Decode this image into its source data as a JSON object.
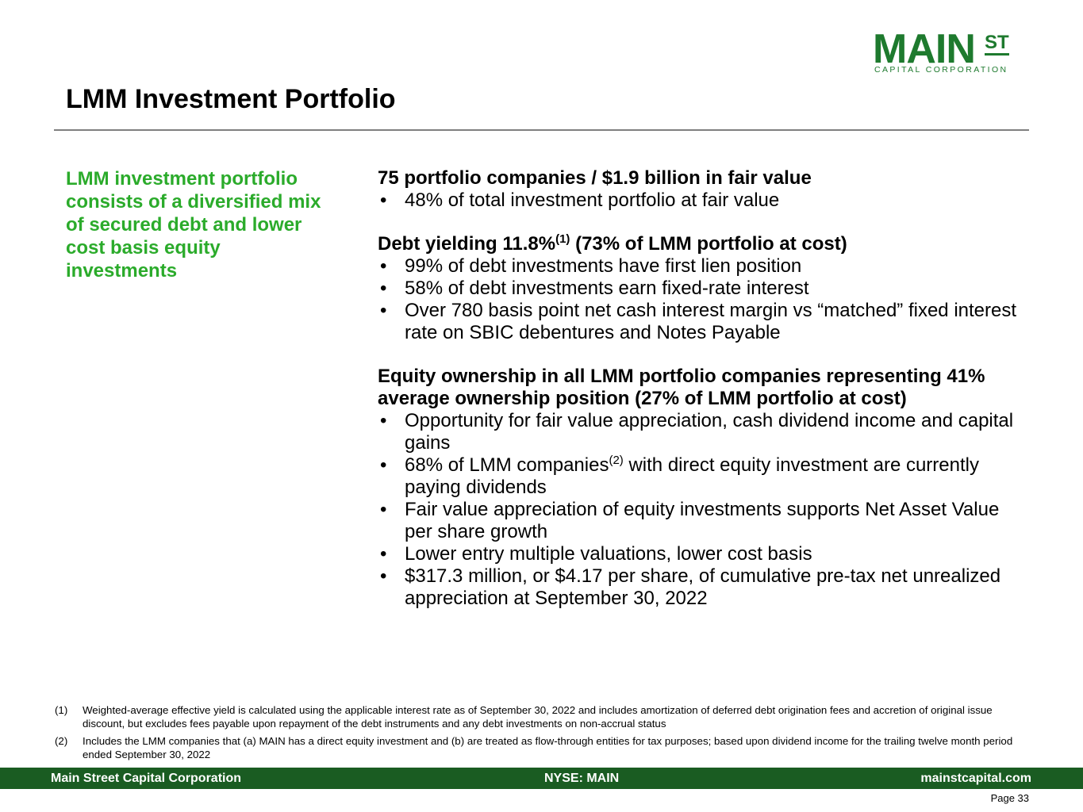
{
  "logo": {
    "main": "MAIN",
    "st": "ST",
    "sub": "CAPITAL CORPORATION"
  },
  "title": "LMM Investment Portfolio",
  "callout": "LMM investment portfolio consists of a diversified mix of secured debt and lower cost basis equity investments",
  "bullet_glyph": "•",
  "sections": [
    {
      "heading": "75 portfolio companies / $1.9 billion in fair value",
      "bullets": [
        "48% of total investment portfolio at fair value"
      ]
    },
    {
      "heading_pre": "Debt yielding 11.8%",
      "heading_sup": "(1)",
      "heading_post": " (73% of LMM portfolio at cost)",
      "bullets": [
        "99% of debt investments have first lien position",
        "58% of debt investments earn fixed-rate interest",
        "Over 780 basis point net cash interest margin vs “matched” fixed interest rate on SBIC debentures and Notes Payable"
      ]
    },
    {
      "heading": "Equity ownership in all LMM portfolio companies representing 41% average ownership position (27% of LMM portfolio at cost)",
      "bullets": [
        "Opportunity for fair value appreciation, cash dividend income and capital gains",
        {
          "pre": "68% of LMM companies",
          "sup": "(2)",
          "post": " with direct equity investment are currently paying dividends"
        },
        "Fair value appreciation of equity investments supports Net Asset Value per share growth",
        "Lower entry multiple valuations, lower cost basis",
        "$317.3 million, or $4.17 per share, of cumulative pre-tax net unrealized appreciation at September 30, 2022"
      ]
    }
  ],
  "footnotes": [
    {
      "num": "(1)",
      "text": "Weighted-average effective yield is calculated using the applicable interest rate as of September 30, 2022 and includes amortization of deferred debt origination fees and accretion of original issue discount, but excludes fees payable upon repayment of the debt instruments and any debt investments on non-accrual status"
    },
    {
      "num": "(2)",
      "text": "Includes the LMM companies that (a) MAIN has a direct equity investment and (b) are treated as flow-through entities for tax purposes; based upon dividend income for the trailing twelve month period ended September 30, 2022"
    }
  ],
  "footer": {
    "left": "Main Street Capital Corporation",
    "center": "NYSE: MAIN",
    "right": "mainstcapital.com"
  },
  "page": "Page  33",
  "colors": {
    "brand_green": "#1e7a2e",
    "callout_green": "#2bab2b",
    "footer_bar": "#1a5c22",
    "rule": "#7f7f7f"
  }
}
